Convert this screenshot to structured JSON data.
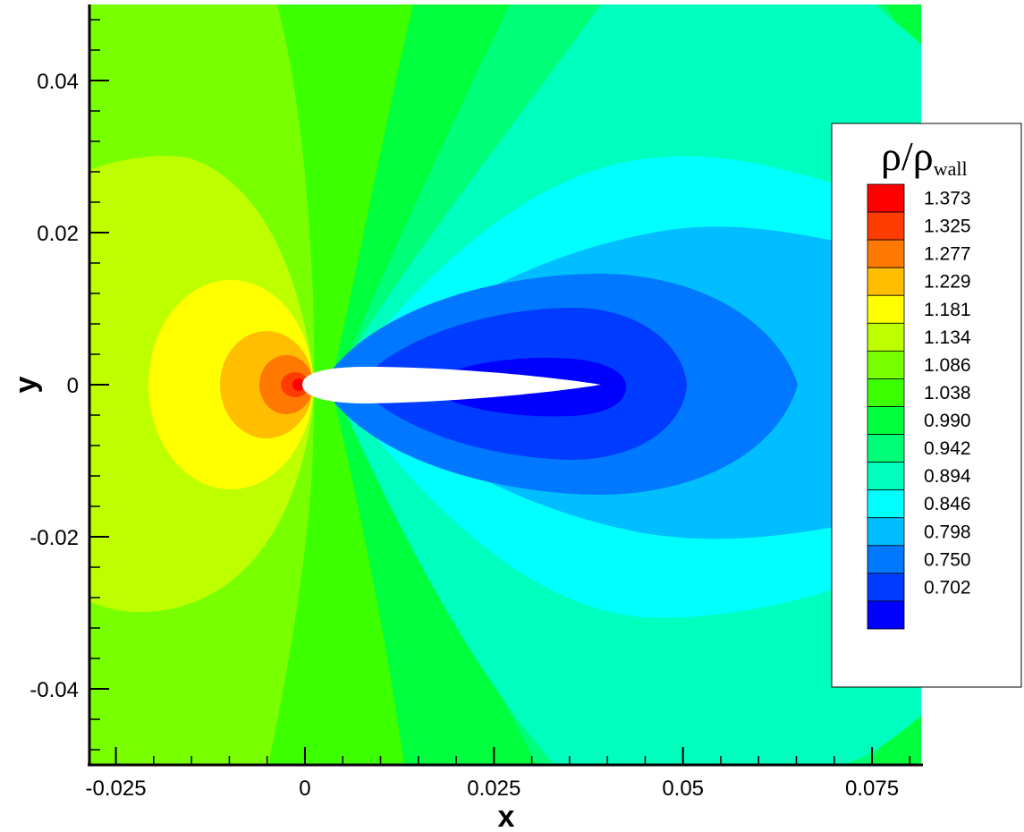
{
  "chart_data": {
    "type": "contour",
    "title": "",
    "xlabel": "x",
    "ylabel": "y",
    "xlim": [
      -0.0285,
      0.0815
    ],
    "ylim": [
      -0.05,
      0.05
    ],
    "xticks": [
      -0.025,
      0,
      0.025,
      0.05,
      0.075
    ],
    "xtick_labels": [
      "-0.025",
      "0",
      "0.025",
      "0.05",
      "0.075"
    ],
    "yticks": [
      0.04,
      0.02,
      0,
      -0.02,
      -0.04
    ],
    "ytick_labels": [
      "0.04",
      "0.02",
      "0",
      "-0.02",
      "-0.04"
    ],
    "legend": {
      "title_main": "ρ/ρ",
      "title_sub": "wall",
      "position": "right",
      "levels": [
        {
          "label": "1.373",
          "color": "#ff0000"
        },
        {
          "label": "1.325",
          "color": "#ff3c00"
        },
        {
          "label": "1.277",
          "color": "#ff7800"
        },
        {
          "label": "1.229",
          "color": "#ffbe00"
        },
        {
          "label": "1.181",
          "color": "#ffff00"
        },
        {
          "label": "1.134",
          "color": "#beff00"
        },
        {
          "label": "1.086",
          "color": "#78ff00"
        },
        {
          "label": "1.038",
          "color": "#3cff00"
        },
        {
          "label": "0.990",
          "color": "#00ff3c"
        },
        {
          "label": "0.942",
          "color": "#00ff78"
        },
        {
          "label": "0.894",
          "color": "#00ffbe"
        },
        {
          "label": "0.846",
          "color": "#00ffff"
        },
        {
          "label": "0.798",
          "color": "#00beff"
        },
        {
          "label": "0.750",
          "color": "#0078ff"
        },
        {
          "label": "0.702",
          "color": "#003cff"
        },
        {
          "label": "",
          "color": "#0000ff"
        }
      ]
    },
    "body": {
      "name": "airfoil",
      "leading_edge_x": 0.0,
      "trailing_edge_x": 0.039
    }
  }
}
